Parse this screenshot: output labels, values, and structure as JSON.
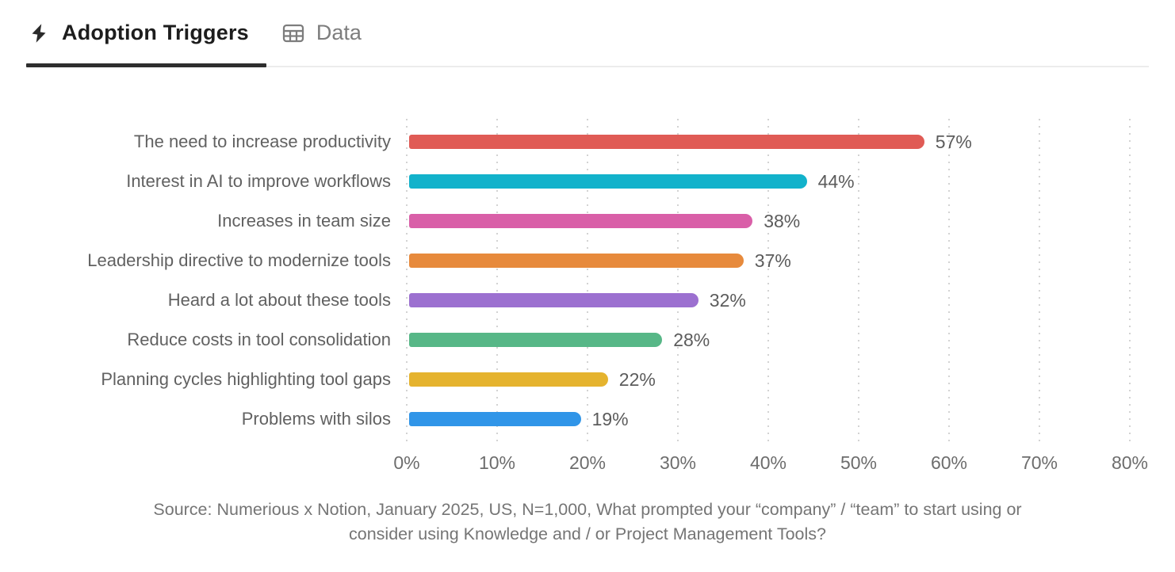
{
  "tabs": [
    {
      "label": "Adoption Triggers",
      "icon": "bolt-icon",
      "active": true
    },
    {
      "label": "Data",
      "icon": "table-icon",
      "active": false
    }
  ],
  "chart_data": {
    "type": "bar",
    "orientation": "horizontal",
    "categories": [
      "The need to increase productivity",
      "Interest in AI to improve workflows",
      "Increases in team size",
      "Leadership directive to modernize tools",
      "Heard a lot about these tools",
      "Reduce costs in tool consolidation",
      "Planning cycles highlighting tool gaps",
      "Problems with silos"
    ],
    "values": [
      57,
      44,
      38,
      37,
      32,
      28,
      22,
      19
    ],
    "value_labels": [
      "57%",
      "44%",
      "38%",
      "37%",
      "32%",
      "28%",
      "22%",
      "19%"
    ],
    "bar_colors": [
      "#E05B55",
      "#12B2CB",
      "#D95FA8",
      "#E78A3C",
      "#9C70D0",
      "#57B787",
      "#E5B32E",
      "#3095E8"
    ],
    "title": "",
    "xlabel": "",
    "ylabel": "",
    "xlim": [
      0,
      80
    ],
    "x_ticks": [
      "0%",
      "10%",
      "20%",
      "30%",
      "40%",
      "50%",
      "60%",
      "70%",
      "80%"
    ],
    "grid": "vertical-dotted",
    "legend": "none",
    "source_lines": [
      "Source: Numerious x Notion, January 2025, US, N=1,000, What prompted your “company” / “team” to start using or",
      "consider using Knowledge and / or Project Management Tools?"
    ]
  }
}
